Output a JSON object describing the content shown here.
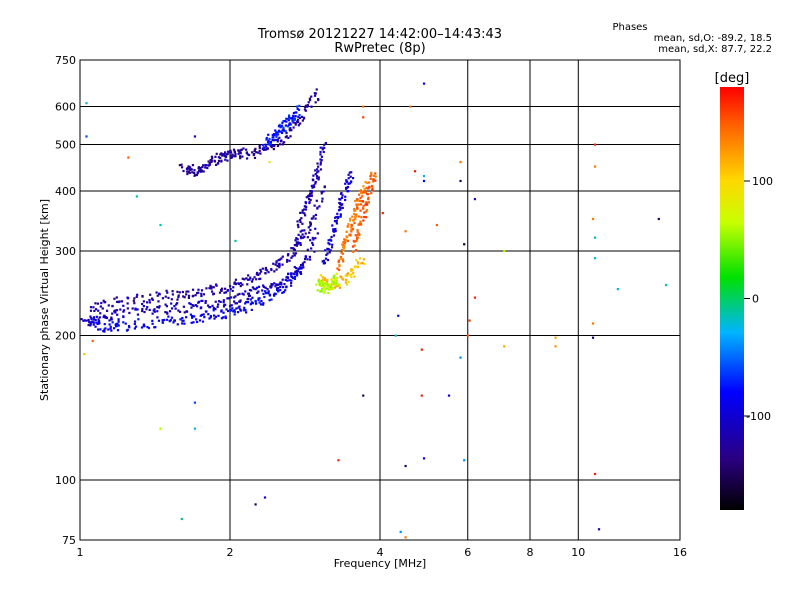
{
  "header": {
    "title_line1": "Tromsø 20121227 14:42:00–14:43:43",
    "title_line2": "RwPretec (8p)",
    "phases_title": "Phases",
    "phases_line1": "mean, sd,O: -89.2, 18.5",
    "phases_line2": "mean, sd,X: 87.7, 22.2"
  },
  "colorbar": {
    "label": "[deg]",
    "ticks": [
      {
        "label": "100",
        "value": 100
      },
      {
        "label": "0",
        "value": 0
      },
      {
        "label": "-100",
        "value": -100
      }
    ],
    "range": [
      -180,
      180
    ]
  },
  "chart_data": {
    "type": "scatter",
    "title": "Tromsø 20121227 14:42:00–14:43:43",
    "subtitle": "RwPretec (8p)",
    "xlabel": "Frequency [MHz]",
    "ylabel": "Stationary phase Virtual Height [km]",
    "x_scale": "log",
    "y_scale": "log",
    "xlim": [
      1,
      16
    ],
    "ylim": [
      75,
      750
    ],
    "grid": true,
    "x_ticks": [
      {
        "label": "1",
        "value": 1
      },
      {
        "label": "2",
        "value": 2
      },
      {
        "label": "4",
        "value": 4
      },
      {
        "label": "6",
        "value": 6
      },
      {
        "label": "8",
        "value": 8
      },
      {
        "label": "10",
        "value": 10
      },
      {
        "label": "16",
        "value": 16
      }
    ],
    "x_gridlines": [
      2,
      4,
      6,
      8,
      10
    ],
    "y_ticks": [
      {
        "label": "75",
        "value": 75
      },
      {
        "label": "100",
        "value": 100
      },
      {
        "label": "200",
        "value": 200
      },
      {
        "label": "300",
        "value": 300
      },
      {
        "label": "400",
        "value": 400
      },
      {
        "label": "500",
        "value": 500
      },
      {
        "label": "600",
        "value": 600
      },
      {
        "label": "750",
        "value": 750
      }
    ],
    "y_gridlines": [
      100,
      200,
      300,
      400,
      500,
      600
    ],
    "color_scale": "phase (deg), -180 black to 180 red (rainbow)",
    "traces": [
      {
        "name": "",
        "phase": -110,
        "x": [
          1.02,
          1.05,
          1.1,
          1.15,
          1.2,
          1.3,
          1.4,
          1.5,
          1.6,
          1.7,
          1.8,
          1.9,
          2.0,
          2.1,
          2.2,
          2.3,
          2.4,
          2.5,
          2.6,
          2.7,
          2.8,
          2.9,
          3.0
        ],
        "y": [
          212,
          215,
          218,
          220,
          222,
          224,
          226,
          228,
          229,
          230,
          232,
          234,
          236,
          240,
          244,
          248,
          252,
          256,
          262,
          270,
          280,
          300,
          330
        ]
      },
      {
        "name": "",
        "phase": -85,
        "x": [
          1.05,
          1.1,
          1.15,
          1.2,
          1.3,
          1.4,
          1.5,
          1.6,
          1.7,
          1.8,
          1.9,
          2.0,
          2.1,
          2.2,
          2.3,
          2.4,
          2.5,
          2.6,
          2.7,
          2.8
        ],
        "y": [
          215,
          210,
          208,
          209,
          211,
          213,
          214,
          216,
          218,
          220,
          222,
          224,
          227,
          231,
          236,
          242,
          248,
          256,
          266,
          280
        ]
      },
      {
        "name": "",
        "phase": -120,
        "x": [
          1.05,
          1.1,
          1.2,
          1.3,
          1.4,
          1.5,
          1.6,
          1.7,
          1.8,
          1.9,
          2.0,
          2.1,
          2.2,
          2.3,
          2.4,
          2.5,
          2.6,
          2.7,
          2.8,
          2.9,
          3.0,
          3.1
        ],
        "y": [
          228,
          232,
          236,
          238,
          240,
          242,
          244,
          246,
          248,
          250,
          253,
          257,
          262,
          268,
          275,
          283,
          292,
          305,
          320,
          340,
          370,
          410
        ]
      },
      {
        "name": "",
        "phase": -115,
        "x": [
          2.7,
          2.75,
          2.8,
          2.85,
          2.9,
          2.95,
          3.0,
          3.05,
          3.1
        ],
        "y": [
          300,
          330,
          360,
          380,
          400,
          420,
          440,
          470,
          500
        ]
      },
      {
        "name": "",
        "phase": -125,
        "x": [
          1.6,
          1.65,
          1.7,
          1.75,
          1.8,
          1.85,
          1.9,
          1.95,
          2.0,
          2.05,
          2.1,
          2.2,
          2.3,
          2.4,
          2.5,
          2.6,
          2.7,
          2.8,
          2.9,
          3.0
        ],
        "y": [
          450,
          445,
          440,
          445,
          455,
          462,
          468,
          472,
          476,
          478,
          478,
          480,
          485,
          495,
          505,
          520,
          545,
          575,
          615,
          640
        ]
      },
      {
        "name": "",
        "phase": -75,
        "x": [
          2.35,
          2.4,
          2.45,
          2.5,
          2.55,
          2.6,
          2.65,
          2.7,
          2.75
        ],
        "y": [
          500,
          510,
          520,
          530,
          545,
          555,
          565,
          575,
          590
        ]
      },
      {
        "name": "",
        "phase": -100,
        "x": [
          3.1,
          3.15,
          3.2,
          3.25,
          3.3,
          3.35,
          3.4,
          3.45,
          3.5
        ],
        "y": [
          280,
          300,
          320,
          340,
          360,
          380,
          400,
          420,
          440
        ]
      },
      {
        "name": "",
        "phase": 110,
        "x": [
          3.05,
          3.1,
          3.2,
          3.3,
          3.4,
          3.5,
          3.6,
          3.7
        ],
        "y": [
          262,
          258,
          256,
          258,
          262,
          270,
          280,
          290
        ]
      },
      {
        "name": "",
        "phase": 60,
        "x": [
          3.0,
          3.05,
          3.1,
          3.15,
          3.2,
          3.25,
          3.3
        ],
        "y": [
          255,
          253,
          250,
          252,
          256,
          260,
          265
        ]
      },
      {
        "name": "",
        "phase": 140,
        "x": [
          3.3,
          3.35,
          3.4,
          3.45,
          3.5,
          3.55,
          3.6,
          3.65,
          3.7,
          3.75
        ],
        "y": [
          280,
          295,
          310,
          325,
          340,
          355,
          370,
          385,
          400,
          410
        ]
      },
      {
        "name": "",
        "phase": 150,
        "x": [
          3.55,
          3.6,
          3.65,
          3.7,
          3.75,
          3.8,
          3.85,
          3.9
        ],
        "y": [
          300,
          320,
          340,
          360,
          380,
          400,
          420,
          440
        ]
      }
    ],
    "scatter_points": [
      {
        "x": 1.03,
        "y": 610,
        "phase": -20
      },
      {
        "x": 1.03,
        "y": 520,
        "phase": -60
      },
      {
        "x": 1.25,
        "y": 470,
        "phase": 150
      },
      {
        "x": 1.3,
        "y": 390,
        "phase": -10
      },
      {
        "x": 1.45,
        "y": 340,
        "phase": -15
      },
      {
        "x": 1.06,
        "y": 195,
        "phase": 150
      },
      {
        "x": 1.02,
        "y": 183,
        "phase": 110
      },
      {
        "x": 1.45,
        "y": 128,
        "phase": 60
      },
      {
        "x": 1.7,
        "y": 145,
        "phase": -60
      },
      {
        "x": 1.7,
        "y": 128,
        "phase": -30
      },
      {
        "x": 1.6,
        "y": 83,
        "phase": -5
      },
      {
        "x": 1.7,
        "y": 520,
        "phase": -100
      },
      {
        "x": 2.05,
        "y": 315,
        "phase": -10
      },
      {
        "x": 2.25,
        "y": 89,
        "phase": -150
      },
      {
        "x": 2.35,
        "y": 92,
        "phase": -100
      },
      {
        "x": 2.4,
        "y": 460,
        "phase": 80
      },
      {
        "x": 3.7,
        "y": 600,
        "phase": 140
      },
      {
        "x": 3.7,
        "y": 570,
        "phase": 160
      },
      {
        "x": 3.7,
        "y": 150,
        "phase": -150
      },
      {
        "x": 3.3,
        "y": 110,
        "phase": 170
      },
      {
        "x": 4.05,
        "y": 360,
        "phase": 170
      },
      {
        "x": 4.3,
        "y": 200,
        "phase": -20
      },
      {
        "x": 4.35,
        "y": 220,
        "phase": -90
      },
      {
        "x": 4.4,
        "y": 78,
        "phase": -40
      },
      {
        "x": 4.5,
        "y": 76,
        "phase": 140
      },
      {
        "x": 4.5,
        "y": 330,
        "phase": 140
      },
      {
        "x": 4.6,
        "y": 600,
        "phase": 140
      },
      {
        "x": 4.5,
        "y": 107,
        "phase": -150
      },
      {
        "x": 4.7,
        "y": 440,
        "phase": 175
      },
      {
        "x": 4.9,
        "y": 670,
        "phase": -80
      },
      {
        "x": 4.9,
        "y": 420,
        "phase": -80
      },
      {
        "x": 4.9,
        "y": 430,
        "phase": -30
      },
      {
        "x": 4.9,
        "y": 111,
        "phase": -90
      },
      {
        "x": 4.85,
        "y": 187,
        "phase": 170
      },
      {
        "x": 4.85,
        "y": 150,
        "phase": 170
      },
      {
        "x": 5.2,
        "y": 340,
        "phase": 150
      },
      {
        "x": 5.5,
        "y": 150,
        "phase": -100
      },
      {
        "x": 5.8,
        "y": 180,
        "phase": -40
      },
      {
        "x": 5.8,
        "y": 460,
        "phase": 140
      },
      {
        "x": 5.8,
        "y": 420,
        "phase": -150
      },
      {
        "x": 5.9,
        "y": 310,
        "phase": -170
      },
      {
        "x": 5.9,
        "y": 110,
        "phase": -40
      },
      {
        "x": 6.0,
        "y": 200,
        "phase": 150
      },
      {
        "x": 6.05,
        "y": 215,
        "phase": 160
      },
      {
        "x": 6.2,
        "y": 385,
        "phase": -100
      },
      {
        "x": 6.2,
        "y": 240,
        "phase": 170
      },
      {
        "x": 7.1,
        "y": 300,
        "phase": 60
      },
      {
        "x": 7.1,
        "y": 190,
        "phase": 120
      },
      {
        "x": 9.0,
        "y": 198,
        "phase": 120
      },
      {
        "x": 9.0,
        "y": 190,
        "phase": 130
      },
      {
        "x": 10.8,
        "y": 500,
        "phase": 170
      },
      {
        "x": 10.8,
        "y": 450,
        "phase": 140
      },
      {
        "x": 10.7,
        "y": 350,
        "phase": 140
      },
      {
        "x": 10.8,
        "y": 320,
        "phase": -10
      },
      {
        "x": 10.8,
        "y": 290,
        "phase": -20
      },
      {
        "x": 10.7,
        "y": 212,
        "phase": 140
      },
      {
        "x": 10.7,
        "y": 198,
        "phase": -150
      },
      {
        "x": 10.8,
        "y": 103,
        "phase": 170
      },
      {
        "x": 11.0,
        "y": 79,
        "phase": -100
      },
      {
        "x": 12.0,
        "y": 250,
        "phase": -20
      },
      {
        "x": 14.5,
        "y": 350,
        "phase": -150
      },
      {
        "x": 15.0,
        "y": 255,
        "phase": -10
      }
    ]
  }
}
